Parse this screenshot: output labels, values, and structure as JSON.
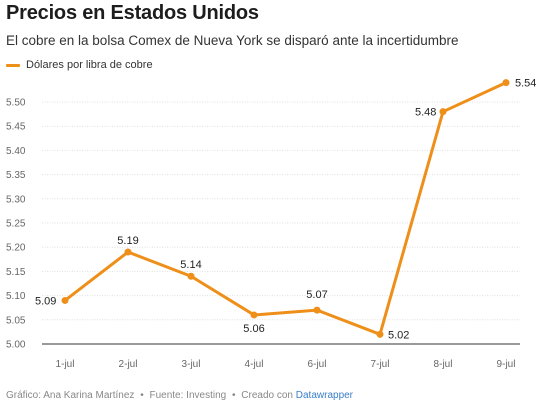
{
  "header": {
    "title": "Precios en Estados Unidos",
    "subtitle": "El cobre en la bolsa Comex de Nueva York se disparó ante la incertidumbre"
  },
  "footer": {
    "grafico": "Gráfico: Ana Karina Martínez",
    "sep1": "•",
    "fuente": "Fuente: Investing",
    "sep2": "•",
    "creado": "Creado con",
    "tool": "Datawrapper"
  },
  "colors": {
    "line": "#ee8f1a",
    "grid": "#e0e0e0",
    "axis_text": "#666666"
  },
  "chart_data": {
    "type": "line",
    "title": "Precios en Estados Unidos",
    "subtitle": "El cobre en la bolsa Comex de Nueva York se disparó ante la incertidumbre",
    "categories": [
      "1-jul",
      "2-jul",
      "3-jul",
      "4-jul",
      "6-jul",
      "7-jul",
      "8-jul",
      "9-jul"
    ],
    "series": [
      {
        "name": "Dólares por libra de cobre",
        "values": [
          5.09,
          5.19,
          5.14,
          5.06,
          5.07,
          5.02,
          5.48,
          5.54
        ]
      }
    ],
    "data_labels": [
      "5.09",
      "5.19",
      "5.14",
      "5.06",
      "5.07",
      "5.02",
      "5.48",
      "5.54"
    ],
    "y_ticks": [
      "5.00",
      "5.05",
      "5.10",
      "5.15",
      "5.20",
      "5.25",
      "5.30",
      "5.35",
      "5.40",
      "5.45",
      "5.50"
    ],
    "ylim": [
      5.0,
      5.5
    ],
    "legend_position": "top-left",
    "grid": true,
    "xlabel": "",
    "ylabel": ""
  }
}
